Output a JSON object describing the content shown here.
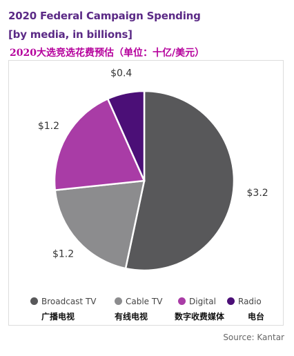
{
  "chart_data": {
    "type": "pie",
    "title": "2020 Federal Campaign Spending",
    "subtitle": "[by media, in billions]",
    "subtitle_zh": "2020大选竞选花费预估（单位：十亿/美元）",
    "categories": [
      "Broadcast TV",
      "Cable TV",
      "Digital",
      "Radio"
    ],
    "categories_zh": [
      "广播电视",
      "有线电视",
      "数字收费媒体",
      "电台"
    ],
    "values": [
      3.2,
      1.2,
      1.2,
      0.4
    ],
    "value_labels": [
      "$3.2",
      "$1.2",
      "$1.2",
      "$0.4"
    ],
    "colors": [
      "#58585a",
      "#8c8c8e",
      "#a93ca6",
      "#4b0f77"
    ],
    "legend_position": "bottom",
    "source": "Source: Kantar"
  }
}
